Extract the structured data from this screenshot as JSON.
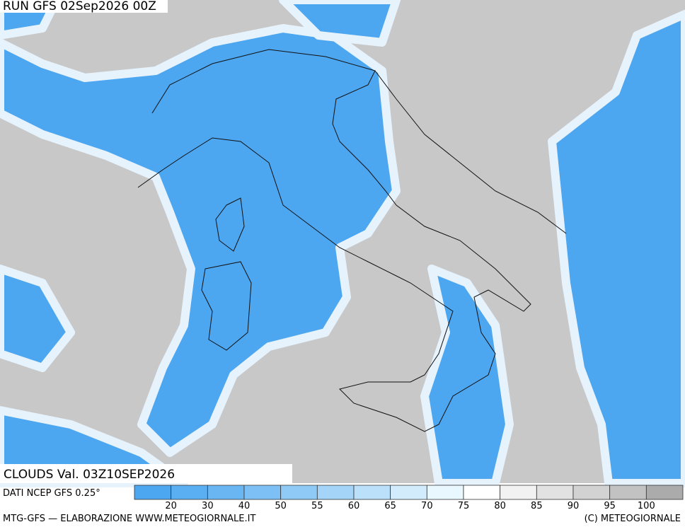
{
  "header": {
    "run": "RUN GFS 02Sep2026 00Z",
    "field": "CLOUDS Val. 03Z10SEP2026",
    "source": "DATI NCEP GFS 0.25°"
  },
  "colorbar": {
    "ticks": [
      20,
      30,
      40,
      50,
      55,
      60,
      65,
      70,
      75,
      80,
      85,
      90,
      95,
      100
    ],
    "colors": [
      "#4da6f0",
      "#5aaef2",
      "#6ab6f3",
      "#7cc0f5",
      "#8fcaf6",
      "#a4d5f8",
      "#bbe0fa",
      "#d2ecfc",
      "#e8f8fe",
      "#ffffff",
      "#f2f2f2",
      "#e2e2e2",
      "#d2d2d2",
      "#c2c2c2",
      "#ababab"
    ]
  },
  "footer": {
    "left": "MTG-GFS — ELABORAZIONE WWW.METEOGIORNALE.IT",
    "right": "(C) METEOGIORNALE"
  }
}
